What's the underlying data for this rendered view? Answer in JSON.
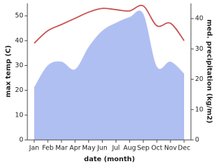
{
  "chart_data": {
    "type": "line-area",
    "x_label": "date (month)",
    "y_label": "max temp (C)",
    "y2_label": "med. precipitation (kg/m2)",
    "categories": [
      "Jan",
      "Feb",
      "Mar",
      "Apr",
      "May",
      "Jun",
      "Jul",
      "Aug",
      "Sep",
      "Oct",
      "Nov",
      "Dec"
    ],
    "series": [
      {
        "name": "max temp",
        "color": "#c85050",
        "values": [
          39,
          44,
          46.5,
          49,
          51.5,
          53,
          52.5,
          52,
          54,
          46,
          47,
          40
        ]
      },
      {
        "name": "med. precipitation",
        "color": "#b0bff2",
        "axis": "y2",
        "values": [
          17.4,
          24.6,
          25.8,
          23.3,
          30.7,
          36,
          38.6,
          40.5,
          41.6,
          24.2,
          25.8,
          21.9
        ]
      }
    ],
    "ylim": [
      0,
      55
    ],
    "yticks": [
      0,
      10,
      20,
      30,
      40,
      50
    ],
    "y2lim": [
      0,
      45
    ],
    "y2ticks": [
      0,
      10,
      20,
      30,
      40
    ]
  }
}
